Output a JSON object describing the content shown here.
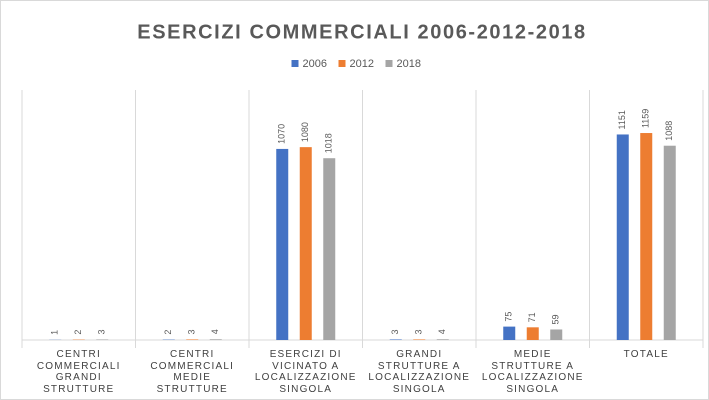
{
  "chart_data": {
    "type": "bar",
    "title": "ESERCIZI COMMERCIALI 2006-2012-2018",
    "categories": [
      "CENTRI COMMERCIALI GRANDI STRUTTURE",
      "CENTRI COMMERCIALI MEDIE STRUTTURE",
      "ESERCIZI DI VICINATO A LOCALIZZAZIONE SINGOLA",
      "GRANDI STRUTTURE A LOCALIZZAZIONE SINGOLA",
      "MEDIE STRUTTURE A LOCALIZZAZIONE SINGOLA",
      "TOTALE"
    ],
    "series": [
      {
        "name": "2006",
        "color": "#4472c4",
        "values": [
          1,
          2,
          1070,
          3,
          75,
          1151
        ]
      },
      {
        "name": "2012",
        "color": "#ed7d31",
        "values": [
          2,
          3,
          1080,
          3,
          71,
          1159
        ]
      },
      {
        "name": "2018",
        "color": "#a5a5a5",
        "values": [
          3,
          4,
          1018,
          4,
          59,
          1088
        ]
      }
    ],
    "ylim": [
      0,
      1400
    ],
    "legend": "top"
  }
}
